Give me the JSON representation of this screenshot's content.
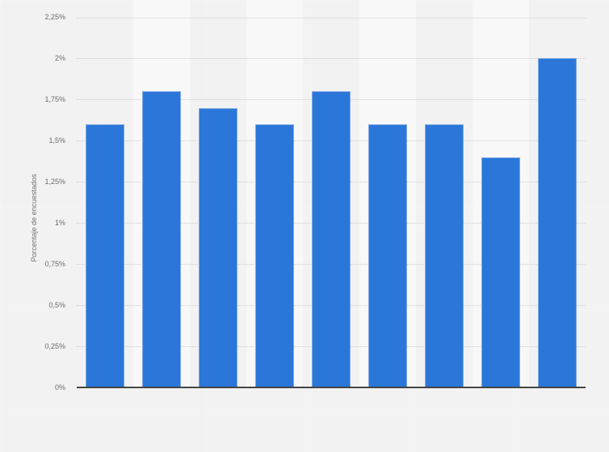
{
  "chart_style": {
    "background_color": "#f2f2f2",
    "band_color_odd": "#f8f8f8",
    "bar_color": "#2b77d9",
    "bar_border_color": "#7fa9e5",
    "grid_color": "#cccccc",
    "axis_color": "#454545",
    "tick_label_color": "#6b6b6b",
    "axis_title_color": "#737373"
  },
  "chart_data": {
    "type": "bar",
    "title": "",
    "xlabel": "",
    "ylabel": "Porcentaje de encuestados",
    "ylim": [
      0,
      2.25
    ],
    "grid": true,
    "grid_style": "dotted",
    "legend": false,
    "x_tick_labels_visible": false,
    "values": [
      1.6,
      1.8,
      1.7,
      1.6,
      1.8,
      1.6,
      1.6,
      1.4,
      2.0
    ],
    "yticks": {
      "values": [
        0,
        0.25,
        0.5,
        0.75,
        1.0,
        1.25,
        1.5,
        1.75,
        2.0,
        2.25
      ],
      "labels": [
        "0%",
        "0,25%",
        "0,5%",
        "0,75%",
        "1%",
        "1,25%",
        "1,5%",
        "1,75%",
        "2%",
        "2,25%"
      ]
    }
  }
}
